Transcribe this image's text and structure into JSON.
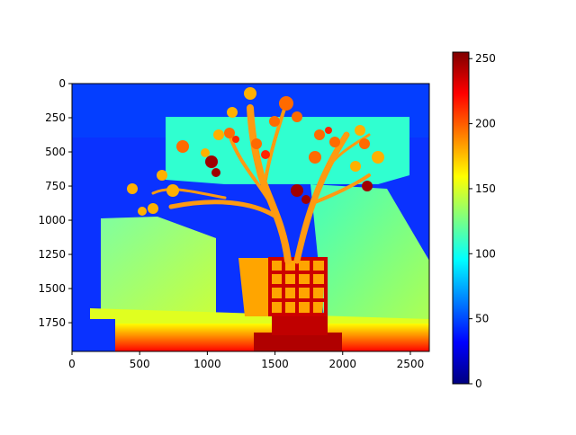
{
  "chart_data": [
    {
      "type": "heatmap",
      "description_source": "image shown with imshow and jet colormap",
      "colormap": "jet",
      "x_ticks": [
        0,
        500,
        1000,
        1500,
        2000,
        2500
      ],
      "y_ticks": [
        0,
        250,
        500,
        750,
        1000,
        1250,
        1500,
        1750
      ],
      "xlim": [
        0,
        2640
      ],
      "ylim": [
        1960,
        0
      ],
      "xlabel": "",
      "ylabel": "",
      "title": "",
      "grid": false
    },
    {
      "type": "colorbar",
      "colormap": "jet",
      "range": [
        0,
        255
      ],
      "ticks": [
        0,
        50,
        100,
        150,
        200,
        250
      ]
    }
  ],
  "colors": {
    "jet_stops": [
      "#00007f",
      "#0000ff",
      "#007fff",
      "#00ffff",
      "#7fff7f",
      "#ffff00",
      "#ff7f00",
      "#ff0000",
      "#7f0000"
    ]
  }
}
